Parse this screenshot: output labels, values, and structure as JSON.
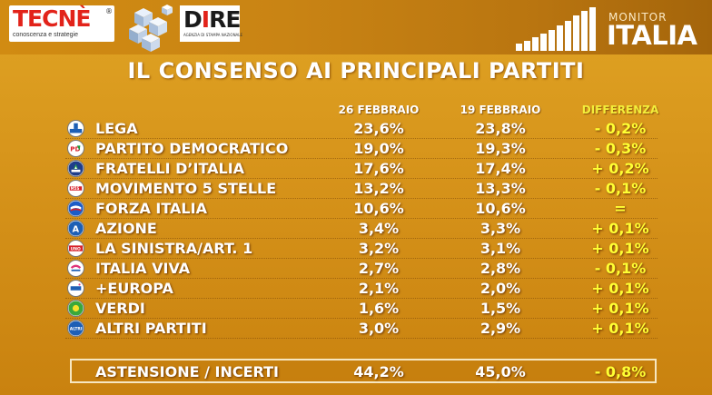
{
  "header": {
    "tecne_brand": "TECNÈ",
    "tecne_reg": "®",
    "tecne_tagline": "conoscenza e strategie",
    "dire_brand": "DIRE",
    "dire_tagline": "AGENZIA DI STAMPA NAZIONALE",
    "monitor_small": "MONITOR",
    "monitor_big": "ITALIA"
  },
  "title": "IL CONSENSO AI PRINCIPALI PARTITI",
  "columns": {
    "date1": "26 FEBBRAIO",
    "date2": "19 FEBBRAIO",
    "diff": "DIFFERENZA"
  },
  "colors": {
    "background": "#d6931a",
    "text": "#ffffff",
    "difference": "#ffff33",
    "diff_header": "#f3ee3a"
  },
  "rows": [
    {
      "party": "LEGA",
      "v1": "23,6%",
      "v2": "23,8%",
      "diff": "- 0,2%",
      "icon": "lega-logo-icon"
    },
    {
      "party": "PARTITO DEMOCRATICO",
      "v1": "19,0%",
      "v2": "19,3%",
      "diff": "- 0,3%",
      "icon": "pd-logo-icon"
    },
    {
      "party": "FRATELLI D’ITALIA",
      "v1": "17,6%",
      "v2": "17,4%",
      "diff": "+ 0,2%",
      "icon": "fdi-logo-icon"
    },
    {
      "party": "MOVIMENTO 5 STELLE",
      "v1": "13,2%",
      "v2": "13,3%",
      "diff": "- 0,1%",
      "icon": "m5s-logo-icon"
    },
    {
      "party": "FORZA ITALIA",
      "v1": "10,6%",
      "v2": "10,6%",
      "diff": "=",
      "icon": "forza-italia-logo-icon"
    },
    {
      "party": "AZIONE",
      "v1": "3,4%",
      "v2": "3,3%",
      "diff": "+ 0,1%",
      "icon": "azione-logo-icon"
    },
    {
      "party": "LA SINISTRA/ART. 1",
      "v1": "3,2%",
      "v2": "3,1%",
      "diff": "+ 0,1%",
      "icon": "sinistra-logo-icon"
    },
    {
      "party": "ITALIA VIVA",
      "v1": "2,7%",
      "v2": "2,8%",
      "diff": "- 0,1%",
      "icon": "italia-viva-logo-icon"
    },
    {
      "party": "+EUROPA",
      "v1": "2,1%",
      "v2": "2,0%",
      "diff": "+ 0,1%",
      "icon": "piu-europa-logo-icon"
    },
    {
      "party": "VERDI",
      "v1": "1,6%",
      "v2": "1,5%",
      "diff": "+ 0,1%",
      "icon": "verdi-logo-icon"
    },
    {
      "party": "ALTRI PARTITI",
      "v1": "3,0%",
      "v2": "2,9%",
      "diff": "+ 0,1%",
      "icon": "altri-logo-icon"
    }
  ],
  "icon_labels": {
    "pd": "PD",
    "m5s": "M5S",
    "azione": "A",
    "sinistra": "UNO",
    "altri": "ALTRI"
  },
  "astensione": {
    "label": "ASTENSIONE / INCERTI",
    "v1": "44,2%",
    "v2": "45,0%",
    "diff": "- 0,8%"
  }
}
